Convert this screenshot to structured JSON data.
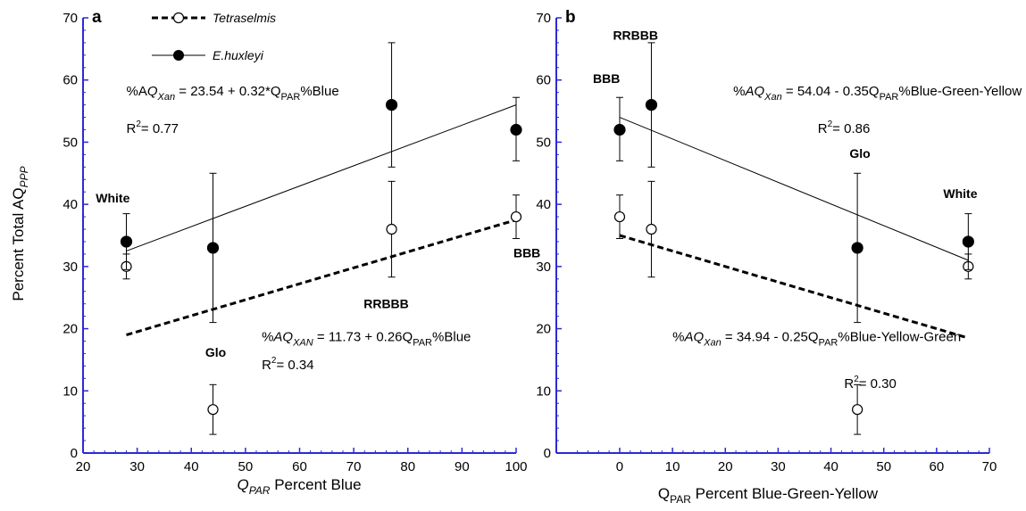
{
  "legend": [
    {
      "name": "Tetraselmis",
      "marker": "open-circle",
      "line": "dashed"
    },
    {
      "name": "E.huxleyi",
      "marker": "filled-circle",
      "line": "solid"
    }
  ],
  "ylabel": "Percent Total AQ",
  "ylabel_sub": "PPP",
  "colors": {
    "axis": "#2b2bd6",
    "data": "#000000"
  },
  "chart_data": [
    {
      "type": "scatter",
      "panel": "a",
      "xlabel": "Q",
      "xlabel_sub": "PAR",
      "xlabel_rest": " Percent Blue",
      "xlim": [
        20,
        100
      ],
      "ylim": [
        0,
        70
      ],
      "xticks": [
        20,
        30,
        40,
        50,
        60,
        70,
        80,
        90,
        100
      ],
      "yticks": [
        0,
        10,
        20,
        30,
        40,
        50,
        60,
        70
      ],
      "series": [
        {
          "name": "Tetraselmis",
          "points": [
            {
              "x": 28,
              "y": 30,
              "lo": 28,
              "hi": 32
            },
            {
              "x": 44,
              "y": 7,
              "lo": 3,
              "hi": 11
            },
            {
              "x": 77,
              "y": 36,
              "lo": 28.3,
              "hi": 43.7
            },
            {
              "x": 100,
              "y": 38,
              "lo": 34.5,
              "hi": 41.5
            }
          ],
          "fit": {
            "x": [
              28,
              100
            ],
            "y": [
              19,
              37.5
            ]
          }
        },
        {
          "name": "E.huxleyi",
          "points": [
            {
              "x": 28,
              "y": 34,
              "lo": 29.5,
              "hi": 38.5
            },
            {
              "x": 44,
              "y": 33,
              "lo": 21,
              "hi": 45
            },
            {
              "x": 77,
              "y": 56,
              "lo": 46,
              "hi": 66
            },
            {
              "x": 100,
              "y": 52,
              "lo": 47,
              "hi": 57.2
            }
          ],
          "fit": {
            "x": [
              28,
              100
            ],
            "y": [
              32.5,
              56
            ]
          }
        }
      ],
      "annotations": [
        {
          "id": "white",
          "text": "White",
          "x": 25.5,
          "y": 40.3
        },
        {
          "id": "glo",
          "text": "Glo",
          "x": 44.5,
          "y": 15.5
        },
        {
          "id": "rrbbb",
          "text": "RRBBB",
          "x": 76,
          "y": 23.3
        },
        {
          "id": "bbb",
          "text": "BBB",
          "x": 102,
          "y": 31.5
        }
      ],
      "equations": [
        {
          "id": "eq-huxleyi",
          "pre": "%A",
          "q": "Q",
          "sub": "Xan",
          "mid": " = 23.54 + 0.32*Q",
          "sub2": "PAR",
          "post": "%Blue",
          "x": 28,
          "y": 57.5
        },
        {
          "id": "eq-tetra",
          "pre": "%",
          "q": "AQ",
          "sub": "XAN",
          "mid": " = 11.73 + 0.26Q",
          "sub2": "PAR",
          "post": "%Blue",
          "x": 53,
          "y": 18
        },
        {
          "id": "r2-huxleyi",
          "r2": "= 0.77",
          "x": 28,
          "y": 51.5
        },
        {
          "id": "r2-tetra",
          "r2": "= 0.34",
          "x": 53,
          "y": 13.5
        }
      ]
    },
    {
      "type": "scatter",
      "panel": "b",
      "xlabel": "Q",
      "xlabel_sub": "PAR",
      "xlabel_rest": " Percent Blue-Green-Yellow",
      "xlim": [
        -12,
        70
      ],
      "ylim": [
        0,
        70
      ],
      "xticks": [
        0,
        10,
        20,
        30,
        40,
        50,
        60,
        70
      ],
      "yticks": [
        0,
        10,
        20,
        30,
        40,
        50,
        60,
        70
      ],
      "series": [
        {
          "name": "Tetraselmis",
          "points": [
            {
              "x": 0,
              "y": 38,
              "lo": 34.5,
              "hi": 41.5
            },
            {
              "x": 6,
              "y": 36,
              "lo": 28.3,
              "hi": 43.7
            },
            {
              "x": 45,
              "y": 7,
              "lo": 3,
              "hi": 11
            },
            {
              "x": 66,
              "y": 30,
              "lo": 28,
              "hi": 32
            }
          ],
          "fit": {
            "x": [
              0,
              66
            ],
            "y": [
              35,
              18.5
            ]
          }
        },
        {
          "name": "E.huxleyi",
          "points": [
            {
              "x": 0,
              "y": 52,
              "lo": 47,
              "hi": 57.2
            },
            {
              "x": 6,
              "y": 56,
              "lo": 46,
              "hi": 66
            },
            {
              "x": 45,
              "y": 33,
              "lo": 21,
              "hi": 45
            },
            {
              "x": 66,
              "y": 34,
              "lo": 29.5,
              "hi": 38.5
            }
          ],
          "fit": {
            "x": [
              0,
              66
            ],
            "y": [
              54,
              31
            ]
          }
        }
      ],
      "annotations": [
        {
          "id": "bbb",
          "text": "BBB",
          "x": -2.5,
          "y": 59.5
        },
        {
          "id": "rrbbb",
          "text": "RRBBB",
          "x": 3,
          "y": 66.5
        },
        {
          "id": "glo",
          "text": "Glo",
          "x": 45.5,
          "y": 47.5
        },
        {
          "id": "white",
          "text": "White",
          "x": 64.5,
          "y": 41
        }
      ],
      "equations": [
        {
          "id": "eq-huxleyi",
          "pre": "%",
          "q": "AQ",
          "sub": "Xan",
          "mid": " = 54.04 - 0.35Q",
          "sub2": "PAR",
          "post": "%Blue-Green-Yellow",
          "x": 21.5,
          "y": 57.5
        },
        {
          "id": "eq-tetra",
          "pre": "%",
          "q": "AQ",
          "sub": "Xan",
          "mid": " = 34.94 - 0.25Q",
          "sub2": "PAR",
          "post": "%Blue-Yellow-Green",
          "x": 10,
          "y": 18
        },
        {
          "id": "r2-huxleyi",
          "r2": "= 0.86",
          "x": 37.5,
          "y": 51.5
        },
        {
          "id": "r2-tetra",
          "r2": "= 0.30",
          "x": 42.5,
          "y": 10.5
        }
      ]
    }
  ]
}
